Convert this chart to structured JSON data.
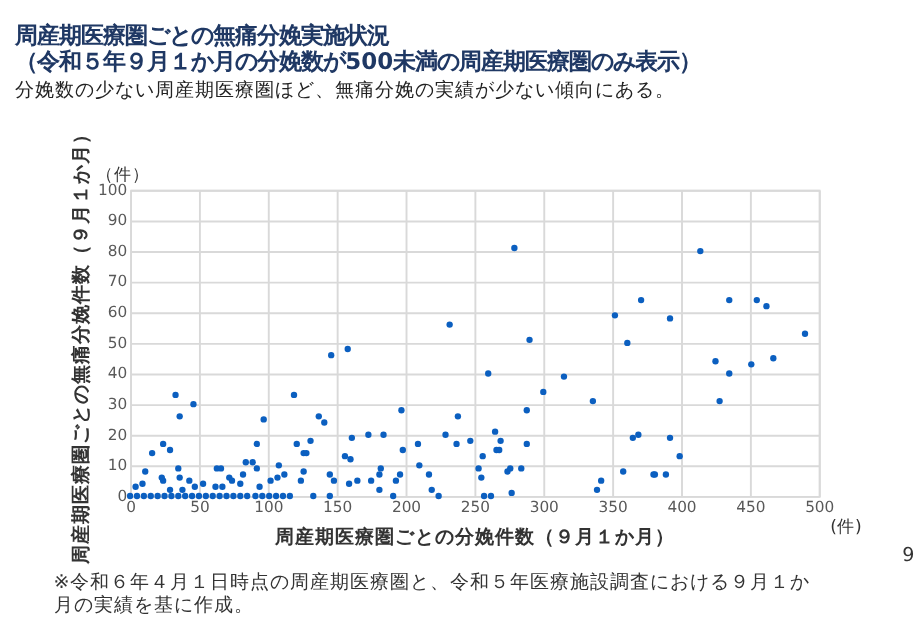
{
  "chart_data": {
    "type": "scatter",
    "title": [
      "周産期医療圏ごとの無痛分娩実施状況",
      "（令和５年９月１か月の分娩数が500未満の周産期医療圏のみ表示）"
    ],
    "subtitle": "分娩数の少ない周産期医療圏ほど、無痛分娩の実績が少ない傾向にある。",
    "xlabel": "周産期医療圏ごとの分娩件数（９月１か月）",
    "ylabel": "周産期医療圏ごとの無痛分娩件数（９月１か月）",
    "annotations": [
      "（件）",
      "(件)",
      "※令和６年４月１日時点の周産期医療圏と、令和５年医療施設調査における９月１か月の実績を基に作成。",
      "9"
    ],
    "series": [
      {
        "color": "#0b5fc0",
        "x": [
          0,
          5,
          10,
          15,
          20,
          25,
          30,
          35,
          40,
          45,
          50,
          55,
          60,
          65,
          70,
          75,
          80,
          85,
          91,
          96,
          101,
          106,
          111,
          116,
          133,
          145,
          191,
          224,
          257,
          262
        ],
        "values": [
          0,
          0,
          0,
          0,
          0,
          0,
          0,
          0,
          0,
          0,
          0,
          0,
          0,
          0,
          0,
          0,
          0,
          0,
          0,
          0,
          0,
          0,
          0,
          0,
          0,
          0,
          0,
          0,
          0,
          0
        ]
      },
      {
        "color": "#0b5fc0",
        "x": [
          4,
          9,
          11,
          16,
          24,
          24,
          23,
          29,
          29,
          33,
          35,
          36,
          36,
          38,
          43,
          46,
          47,
          53,
          62,
          63,
          66,
          67,
          72,
          74,
          80,
          82,
          84,
          89,
          92,
          92,
          94,
          97,
          102,
          108,
          107,
          112,
          119,
          121,
          124,
          126,
          126,
          128,
          131,
          137,
          141,
          145,
          146,
          148,
          156,
          160,
          158,
          161,
          159,
          165,
          173,
          175,
          181,
          182,
          181,
          184,
          193,
          196,
          197,
          198,
          209,
          210,
          217,
          219,
          229,
          232,
          237,
          238,
          247,
          253,
          255,
          256,
          260,
          265,
          266,
          268,
          269,
          274,
          276,
          277,
          279,
          284,
          288,
          288,
          290,
          300,
          315,
          336,
          339,
          342,
          352,
          358,
          361,
          365,
          369,
          371,
          381,
          380,
          389,
          392,
          392,
          399,
          414,
          425,
          428,
          435,
          435,
          451,
          455,
          462,
          467,
          490
        ],
        "values": [
          3,
          4,
          8,
          14,
          17,
          5,
          6,
          15,
          2,
          33,
          9,
          26,
          6,
          2,
          5,
          30,
          3,
          4,
          3,
          9,
          9,
          3,
          6,
          5,
          4,
          7,
          11,
          11,
          17,
          9,
          3,
          25,
          5,
          10,
          6,
          7,
          33,
          17,
          5,
          8,
          14,
          14,
          18,
          26,
          24,
          7,
          46,
          5,
          13,
          12,
          48,
          19,
          4,
          5,
          20,
          5,
          2,
          9,
          7,
          20,
          5,
          7,
          28,
          15,
          17,
          10,
          7,
          2,
          20,
          56,
          17,
          26,
          18,
          9,
          6,
          13,
          40,
          21,
          15,
          15,
          18,
          8,
          9,
          1,
          81,
          9,
          28,
          17,
          51,
          34,
          39,
          31,
          2,
          5,
          59,
          8,
          50,
          19,
          20,
          64,
          7,
          7,
          7,
          58,
          19,
          13,
          80,
          44,
          31,
          64,
          40,
          43,
          64,
          62,
          45,
          53
        ]
      }
    ],
    "xlim": [
      0,
      500
    ],
    "xticks": [
      0,
      50,
      100,
      150,
      200,
      250,
      300,
      350,
      400,
      450,
      500
    ],
    "ylim": [
      0,
      100
    ],
    "yticks": [
      0,
      10,
      20,
      30,
      40,
      50,
      60,
      70,
      80,
      90,
      100
    ],
    "grid": true,
    "marker": "circle"
  }
}
